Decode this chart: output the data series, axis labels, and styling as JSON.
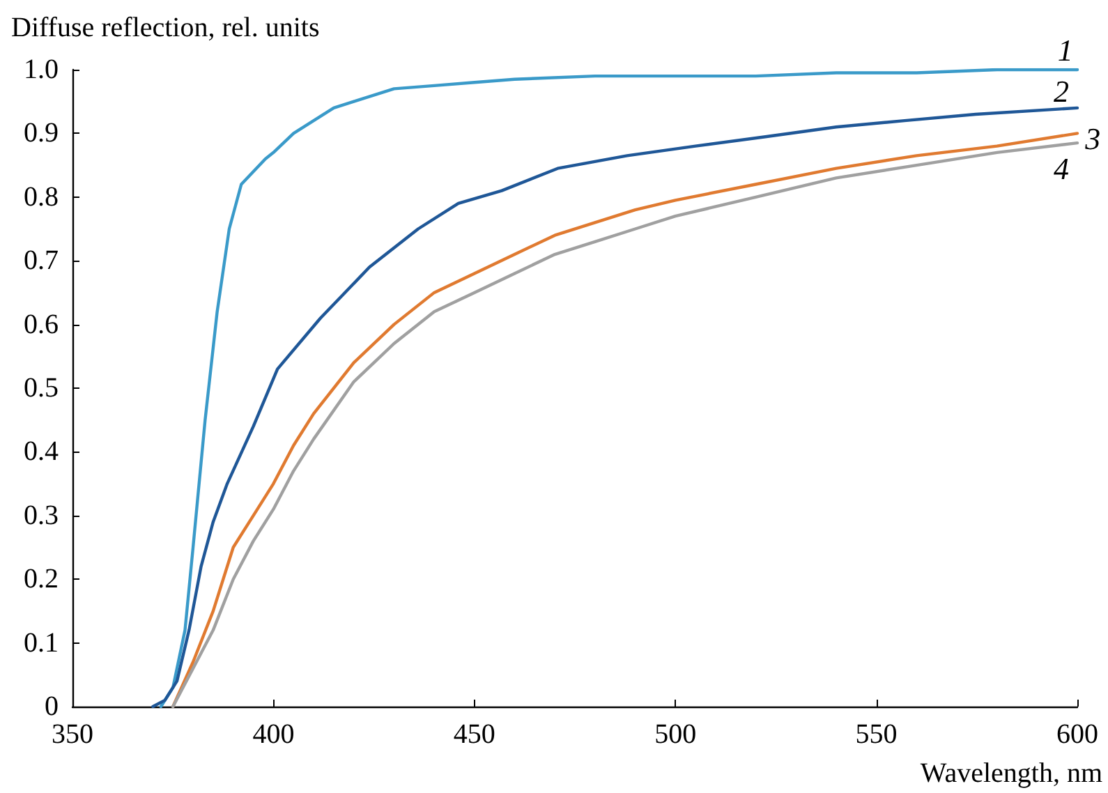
{
  "chart_data": {
    "type": "line",
    "xlabel": "Wavelength, nm",
    "ylabel": "Diffuse reflection, rel. units",
    "xlim": [
      350,
      600
    ],
    "xticks": [
      350,
      400,
      450,
      500,
      550,
      600
    ],
    "ylim": [
      0,
      1
    ],
    "yticks": [
      {
        "value": 0,
        "label": "0"
      },
      0.1,
      0.2,
      0.3,
      0.4,
      0.5,
      0.6,
      0.7,
      0.8,
      0.9,
      {
        "value": 1,
        "label": "1.0"
      }
    ],
    "grid": false,
    "marker": "none",
    "line_style": "solid",
    "series": [
      {
        "color": "#3a9ac9",
        "x": [
          372,
          375,
          378,
          380,
          383,
          386,
          389,
          392,
          395,
          398,
          400,
          405,
          410,
          415,
          420,
          430,
          440,
          450,
          460,
          480,
          500,
          520,
          540,
          560,
          580,
          600
        ],
        "values": [
          0,
          0.03,
          0.12,
          0.25,
          0.45,
          0.62,
          0.75,
          0.82,
          0.84,
          0.86,
          0.87,
          0.9,
          0.92,
          0.94,
          0.95,
          0.97,
          0.975,
          0.98,
          0.985,
          0.99,
          0.99,
          0.99,
          0.995,
          0.995,
          1.0,
          1.0
        ]
      },
      {
        "color": "#1f5797",
        "x": [
          370,
          373,
          376,
          379,
          382,
          385,
          388.5,
          395,
          401,
          411.7,
          423.9,
          436,
          446,
          456.8,
          470.7,
          488,
          505,
          522.7,
          540,
          557,
          574.7,
          600
        ],
        "values": [
          0,
          0.01,
          0.04,
          0.12,
          0.22,
          0.29,
          0.35,
          0.44,
          0.53,
          0.61,
          0.69,
          0.75,
          0.79,
          0.81,
          0.845,
          0.865,
          0.88,
          0.895,
          0.91,
          0.92,
          0.93,
          0.94
        ]
      },
      {
        "color": "#e07a30",
        "x": [
          375,
          380,
          385,
          390,
          395,
          400,
          405,
          410,
          420,
          430,
          440,
          450,
          460,
          470,
          480,
          490,
          500,
          520,
          540,
          560,
          580,
          600
        ],
        "values": [
          0,
          0.07,
          0.15,
          0.25,
          0.3,
          0.35,
          0.41,
          0.46,
          0.54,
          0.6,
          0.65,
          0.68,
          0.71,
          0.74,
          0.76,
          0.78,
          0.795,
          0.82,
          0.845,
          0.865,
          0.88,
          0.9
        ]
      },
      {
        "color": "#a0a0a0",
        "x": [
          375,
          380,
          385,
          390,
          395,
          400,
          405,
          410,
          420,
          430,
          440,
          450,
          460,
          470,
          480,
          490,
          500,
          520,
          540,
          560,
          580,
          600
        ],
        "values": [
          0,
          0.06,
          0.12,
          0.2,
          0.26,
          0.31,
          0.37,
          0.42,
          0.51,
          0.57,
          0.62,
          0.65,
          0.68,
          0.71,
          0.73,
          0.75,
          0.77,
          0.8,
          0.83,
          0.85,
          0.87,
          0.885
        ]
      }
    ],
    "annotations": [
      {
        "text": "1",
        "x": 597,
        "y": 1.0
      },
      {
        "text": "2",
        "x": 596,
        "y": 0.935
      },
      {
        "text": "3",
        "x": 599,
        "y": 0.9
      },
      {
        "text": "4",
        "x": 596,
        "y": 0.88
      }
    ]
  }
}
